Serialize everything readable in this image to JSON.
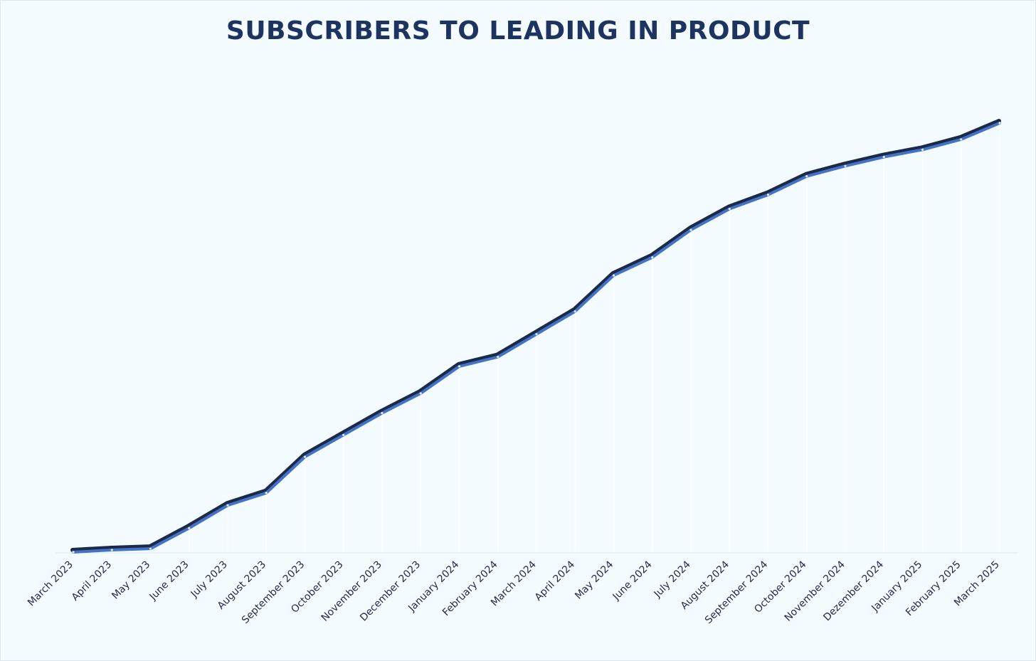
{
  "chart_data": {
    "type": "line",
    "title": "SUBSCRIBERS TO LEADING IN PRODUCT",
    "xlabel": "",
    "ylabel": "",
    "grid": false,
    "y_axis_labels_shown": false,
    "categories": [
      "March 2023",
      "April 2023",
      "May 2023",
      "June 2023",
      "July 2023",
      "August 2023",
      "September 2023",
      "October 2023",
      "November 2023",
      "December 2023",
      "January 2024",
      "February 2024",
      "March 2024",
      "April 2024",
      "May 2024",
      "June 2024",
      "July 2024",
      "August 2024",
      "September 2024",
      "October 2024",
      "November 2024",
      "Dezember 2024",
      "January 2025",
      "February 2025",
      "March 2025"
    ],
    "series": [
      {
        "values": [
          0.0,
          0.5,
          0.8,
          5.6,
          10.9,
          13.8,
          22.2,
          27.3,
          32.4,
          37.0,
          43.3,
          45.5,
          50.8,
          56.1,
          64.5,
          68.7,
          75.1,
          80.0,
          83.3,
          87.6,
          90.0,
          92.1,
          93.8,
          96.2,
          100.0
        ]
      }
    ],
    "ylim": [
      0,
      100
    ],
    "colors": {
      "line": "#4472c4",
      "line_shadow": "#1c2a4a",
      "title": "#1d3461",
      "background": "#f3fbff",
      "axis": "#e4eef6"
    }
  }
}
